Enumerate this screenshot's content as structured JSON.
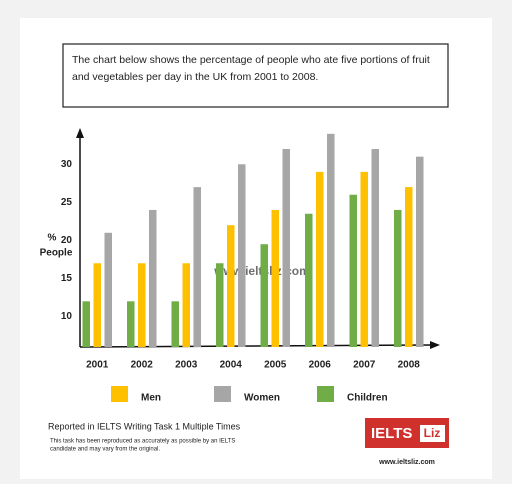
{
  "chart_data": {
    "type": "bar",
    "title": "The chart below shows the percentage of people who ate five portions of fruit and vegetables per day in the UK from 2001 to 2008.",
    "ylabel": [
      "%",
      "People"
    ],
    "watermark": "www.ieltsliz.com",
    "categories": [
      "2001",
      "2002",
      "2003",
      "2004",
      "2005",
      "2006",
      "2007",
      "2008"
    ],
    "series": [
      {
        "name": "Children",
        "color": "#70ad47",
        "values": [
          12,
          12,
          12,
          17,
          19.5,
          23.5,
          26,
          24
        ]
      },
      {
        "name": "Men",
        "color": "#ffc000",
        "values": [
          17,
          17,
          17,
          22,
          24,
          29,
          29,
          27
        ]
      },
      {
        "name": "Women",
        "color": "#a6a6a6",
        "values": [
          21,
          24,
          27,
          30,
          32,
          34,
          32,
          31
        ]
      }
    ],
    "legend_order": [
      1,
      2,
      0
    ],
    "ylim": [
      6,
      34.5
    ],
    "yticks": [
      10,
      15,
      20,
      25,
      30
    ],
    "grid": false
  },
  "source": {
    "heading": "Reported in IELTS Writing Task 1 Multiple Times",
    "note": [
      "This task has been reproduced as accurately as possible by an IELTS",
      "candidate and may vary from the original."
    ],
    "logo": [
      "IELTS",
      "Liz"
    ],
    "url": "www.ieltsliz.com"
  }
}
